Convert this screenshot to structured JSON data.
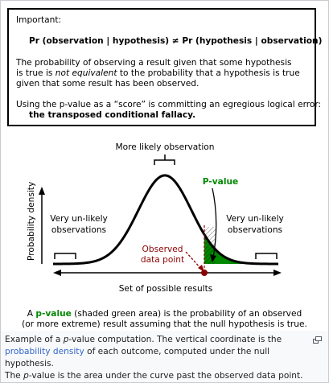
{
  "box": {
    "important": "Important:",
    "formula": "Pr (observation | hypothesis) ≠ Pr (hypothesis | observation)",
    "line1": "The probability of observing a result given that some hypothesis",
    "line2_a": "is true is ",
    "line2_b": "not equivalent",
    "line2_c": " to the probability that a hypothesis is true",
    "line3": "given that some result has been observed.",
    "line4": "Using the p-value as a “score” is committing an egregious logical error:",
    "line5": "the transposed conditional fallacy."
  },
  "diagram": {
    "more_likely": "More likely observation",
    "p_value_label": "P-value",
    "unlikely_left_1": "Very un-likely",
    "unlikely_left_2": "observations",
    "unlikely_right_1": "Very un-likely",
    "unlikely_right_2": "observations",
    "observed_1": "Observed",
    "observed_2": "data point",
    "y_axis_label": "Probability density",
    "x_axis_label": "Set of possible results",
    "colors": {
      "green_fill": "#008800",
      "observed": "#8b0000",
      "p_label": "#008800"
    }
  },
  "figure_caption": {
    "line1_a": "A ",
    "line1_b": "p-value",
    "line1_c": " (shaded green area) is the probability of an observed",
    "line2": "(or more extreme) result assuming that the null hypothesis is true."
  },
  "wiki_caption": {
    "l1_a": "Example of a ",
    "l1_b": "p",
    "l1_c": "-value computation. The vertical coordinate is the",
    "l2_link": "probability density",
    "l2_rest": " of each outcome, computed under the null hypothesis.",
    "l3_a": "The ",
    "l3_b": "p",
    "l3_c": "-value is the area under the curve past the observed data point."
  }
}
